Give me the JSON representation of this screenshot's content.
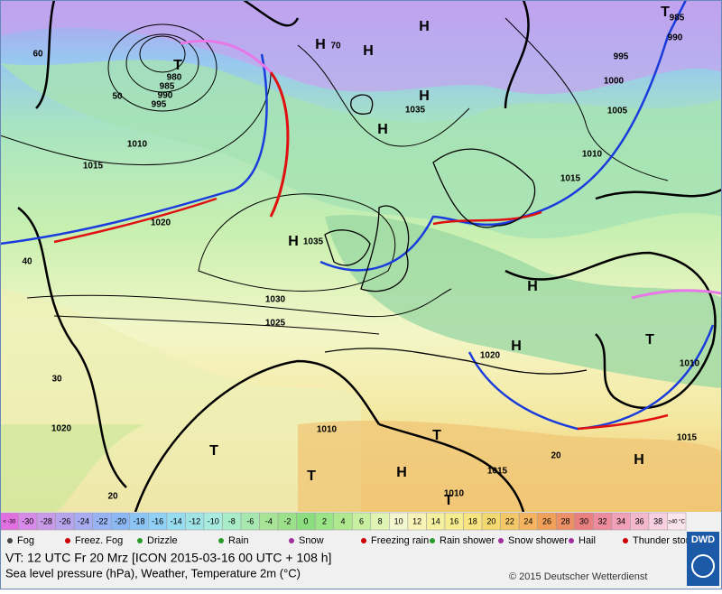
{
  "map": {
    "labels": [
      "T",
      "980",
      "985",
      "990",
      "995",
      "60",
      "50",
      "1010",
      "1015",
      "1020",
      "40",
      "30",
      "1020",
      "20",
      "1030",
      "1025",
      "H",
      "1035",
      "H",
      "70",
      "H",
      "H",
      "H",
      "1035",
      "H",
      "H",
      "H",
      "1020",
      "H",
      "T",
      "T",
      "T",
      "1010",
      "1015",
      "1010",
      "T",
      "H",
      "1015",
      "1010",
      "T",
      "1000",
      "1005",
      "1010",
      "1015",
      "995",
      "990",
      "985",
      "T",
      "20"
    ]
  },
  "scale": {
    "labels": [
      "< -30",
      "-30",
      "-28",
      "-26",
      "-24",
      "-22",
      "-20",
      "-18",
      "-16",
      "-14",
      "-12",
      "-10",
      "-8",
      "-6",
      "-4",
      "-2",
      "0",
      "2",
      "4",
      "6",
      "8",
      "10",
      "12",
      "14",
      "16",
      "18",
      "20",
      "22",
      "24",
      "26",
      "28",
      "30",
      "32",
      "34",
      "36",
      "38",
      "≥40 °C"
    ],
    "colors": [
      "#e070e0",
      "#d88ae8",
      "#c89ae8",
      "#b8a4ec",
      "#a8acf0",
      "#98b4f4",
      "#8cb8f4",
      "#8cc4f4",
      "#90d0f4",
      "#98dcf0",
      "#a0e4e8",
      "#a8ece0",
      "#a8ecc8",
      "#a8e8b0",
      "#a8e498",
      "#9ce08c",
      "#8cdc80",
      "#9ce488",
      "#b0e890",
      "#c8f0a0",
      "#e0f4b4",
      "#f4f8d0",
      "#f8f4b8",
      "#f4f0a0",
      "#f8ec90",
      "#f8e480",
      "#f4d870",
      "#f4c868",
      "#f4b460",
      "#f0a058",
      "#ec9068",
      "#e88080",
      "#ec8c9c",
      "#f0a0b8",
      "#f4b8cc",
      "#f8d0e0",
      "#fce4ec"
    ]
  },
  "legend": [
    "Fog",
    "Freez. Fog",
    "Drizzle",
    "Rain",
    "Snow",
    "Freezing rain",
    "Rain shower",
    "Snow shower",
    "Hail",
    "Thunder storm"
  ],
  "footer": {
    "valid_time": "VT: 12 UTC Fr  20 Mrz [ICON 2015-03-16  00 UTC + 108 h]",
    "description": "Sea level pressure (hPa), Weather, Temperature 2m (°C)",
    "copyright": "© 2015 Deutscher Wetterdienst",
    "logo": "DWD"
  }
}
